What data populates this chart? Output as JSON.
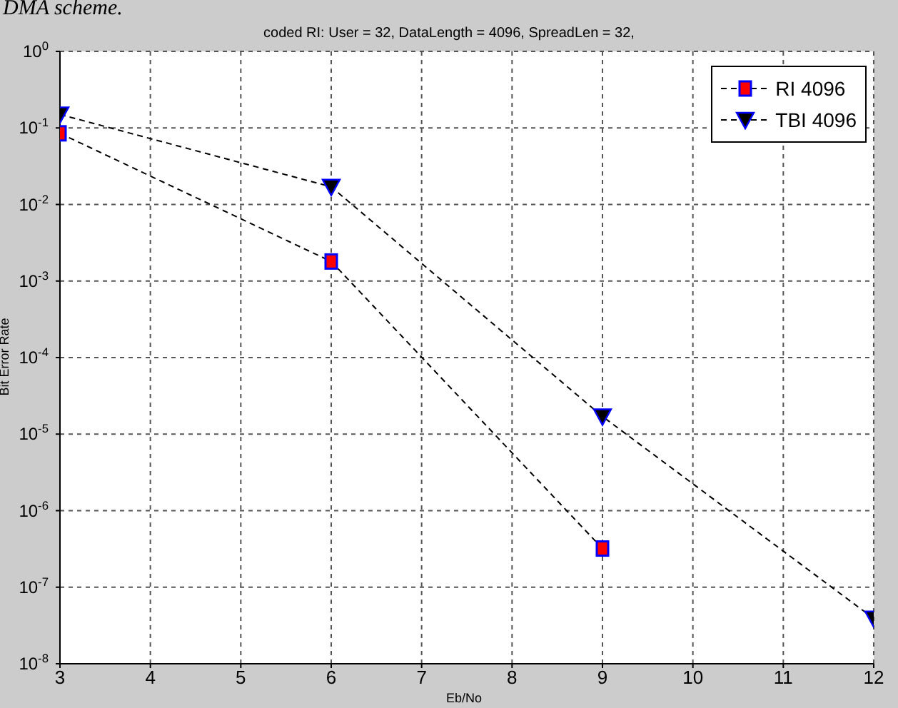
{
  "chart_data": {
    "type": "line",
    "title": "coded RI: User = 32, DataLength = 4096,  SpreadLen = 32,",
    "xlabel": "Eb/No",
    "ylabel": "Bit Error Rate",
    "annotations": [
      "DMA scheme."
    ],
    "x": [
      3,
      6,
      9,
      12
    ],
    "series": [
      {
        "name": "RI 4096",
        "color": "#000000",
        "marker": "square",
        "values": [
          0.085,
          0.0018,
          3.2e-07,
          null
        ]
      },
      {
        "name": "TBI 4096",
        "color": "#000000",
        "marker": "triangle",
        "values": [
          0.15,
          0.017,
          1.7e-05,
          3.9e-08
        ]
      }
    ],
    "log": true,
    "xlim": [
      3,
      12
    ],
    "xticks": [
      3,
      4,
      5,
      6,
      7,
      8,
      9,
      10,
      11,
      12
    ],
    "ylim": [
      1e-08,
      1
    ],
    "yticks": [
      {
        "value": 1e-08,
        "label": "10$^{-8}$"
      },
      {
        "value": 1e-07,
        "label": "10$^{-7}$"
      },
      {
        "value": 1e-06,
        "label": "10$^{-6}$"
      },
      {
        "value": 1e-05,
        "label": "10$^{-5}$"
      },
      {
        "value": 0.0001,
        "label": "10$^{-4}$"
      },
      {
        "value": 0.001,
        "label": "10$^{-3}$"
      },
      {
        "value": 0.01,
        "label": "10$^{-2}$"
      },
      {
        "value": 0.1,
        "label": "10$^{-1}$"
      },
      {
        "value": 1,
        "label": "10$^{0}$"
      }
    ],
    "grid": true,
    "legend": "top right",
    "line_style": "dashed"
  }
}
